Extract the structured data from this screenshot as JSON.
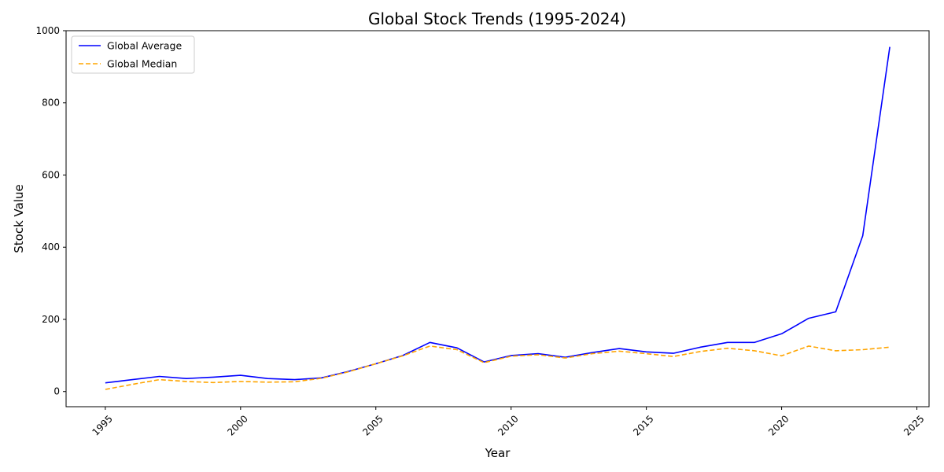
{
  "chart_data": {
    "type": "line",
    "title": "Global Stock Trends (1995-2024)",
    "xlabel": "Year",
    "ylabel": "Stock Value",
    "xlim": [
      1993.55,
      2025.45
    ],
    "ylim": [
      -42,
      1000
    ],
    "xticks": [
      1995,
      2000,
      2005,
      2010,
      2015,
      2020,
      2025
    ],
    "yticks": [
      0,
      200,
      400,
      600,
      800,
      1000
    ],
    "grid": false,
    "legend_position": "top-left",
    "x": [
      1995,
      1996,
      1997,
      1998,
      1999,
      2000,
      2001,
      2002,
      2003,
      2004,
      2005,
      2006,
      2007,
      2008,
      2009,
      2010,
      2011,
      2012,
      2013,
      2014,
      2015,
      2016,
      2017,
      2018,
      2019,
      2020,
      2021,
      2022,
      2023,
      2024
    ],
    "series": [
      {
        "name": "Global Average",
        "color": "#0000ff",
        "style": "solid",
        "values": [
          24,
          33,
          42,
          36,
          40,
          45,
          36,
          33,
          38,
          56,
          77,
          100,
          136,
          121,
          82,
          100,
          105,
          95,
          108,
          119,
          110,
          106,
          123,
          136,
          136,
          160,
          203,
          221,
          432,
          955
        ]
      },
      {
        "name": "Global Median",
        "color": "#ffa500",
        "style": "dashed",
        "values": [
          6,
          20,
          33,
          28,
          25,
          28,
          26,
          27,
          37,
          55,
          77,
          99,
          126,
          116,
          80,
          98,
          102,
          93,
          105,
          112,
          105,
          97,
          111,
          120,
          113,
          99,
          126,
          113,
          116,
          123
        ]
      }
    ]
  }
}
